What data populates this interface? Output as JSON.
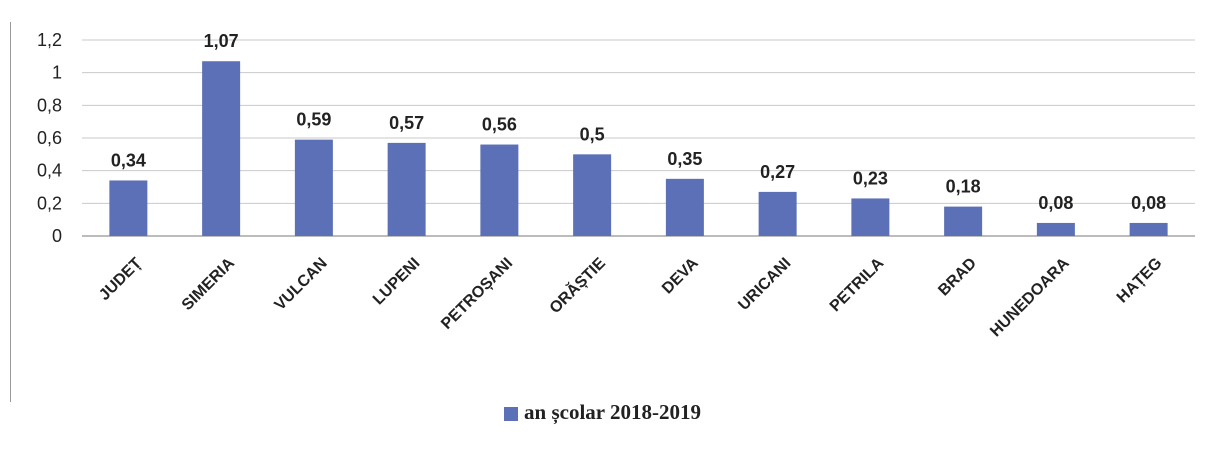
{
  "chart_data": {
    "type": "bar",
    "categories": [
      "JUDEȚ",
      "SIMERIA",
      "VULCAN",
      "LUPENI",
      "PETROȘANI",
      "ORĂȘTIE",
      "DEVA",
      "URICANI",
      "PETRILA",
      "BRAD",
      "HUNEDOARA",
      "HAȚEG"
    ],
    "series": [
      {
        "name": "an școlar 2018-2019",
        "values": [
          0.34,
          1.07,
          0.59,
          0.57,
          0.56,
          0.5,
          0.35,
          0.27,
          0.23,
          0.18,
          0.08,
          0.08
        ],
        "labels": [
          "0,34",
          "1,07",
          "0,59",
          "0,57",
          "0,56",
          "0,5",
          "0,35",
          "0,27",
          "0,23",
          "0,18",
          "0,08",
          "0,08"
        ]
      }
    ],
    "yticks": [
      0,
      0.2,
      0.4,
      0.6,
      0.8,
      1,
      1.2
    ],
    "ytick_labels": [
      "0",
      "0,2",
      "0,4",
      "0,6",
      "0,8",
      "1",
      "1,2"
    ],
    "ylim": [
      0,
      1.2
    ],
    "grid": true,
    "legend_position": "bottom",
    "bar_color": "#5b70b6"
  },
  "legend": {
    "label": "an școlar 2018-2019"
  }
}
